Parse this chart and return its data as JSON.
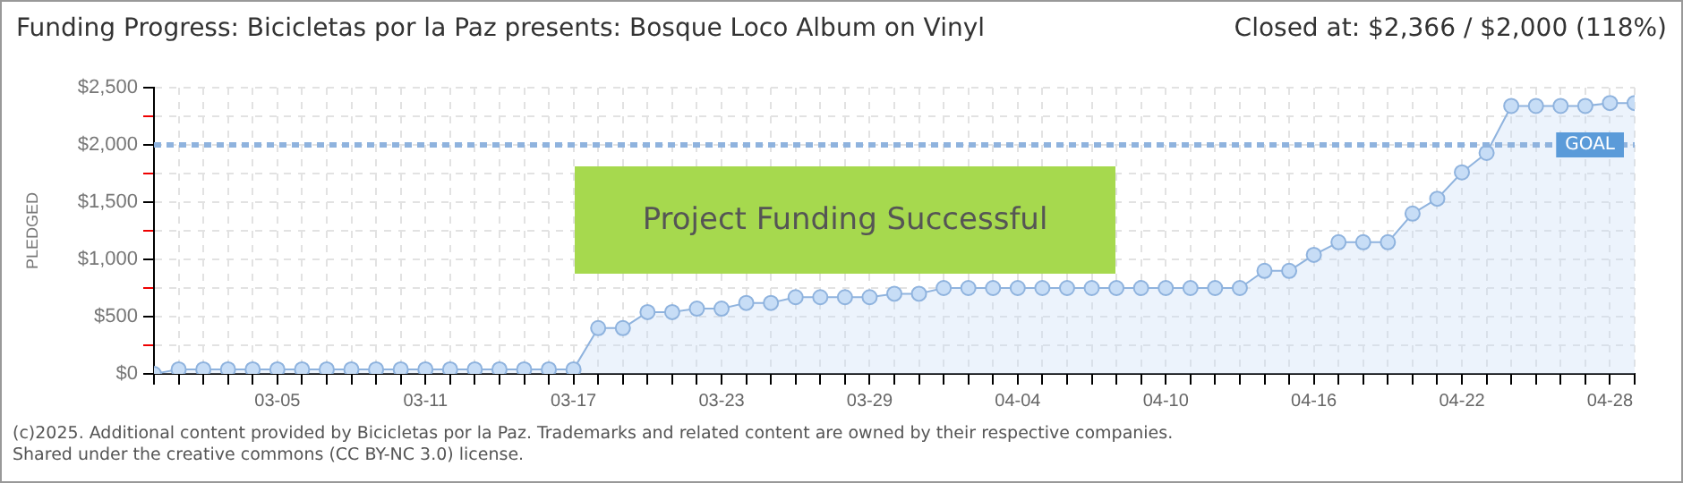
{
  "chart_data": {
    "type": "area",
    "title": "Funding Progress: Bicicletas por la Paz presents: Bosque Loco Album on Vinyl",
    "subtitle": "Closed at:  $2,366 /  $2,000 (118%)",
    "ylabel": "PLEDGED",
    "x": [
      "--02-28",
      "--03-01",
      "--03-02",
      "--03-03",
      "--03-04",
      "--03-05",
      "--03-06",
      "--03-07",
      "--03-08",
      "--03-09",
      "--03-10",
      "--03-11",
      "--03-12",
      "--03-13",
      "--03-14",
      "--03-15",
      "--03-16",
      "--03-17",
      "--03-18",
      "--03-19",
      "--03-20",
      "--03-21",
      "--03-22",
      "--03-23",
      "--03-24",
      "--03-25",
      "--03-26",
      "--03-27",
      "--03-28",
      "--03-29",
      "--03-30",
      "--03-31",
      "--04-01",
      "--04-02",
      "--04-03",
      "--04-04",
      "--04-05",
      "--04-06",
      "--04-07",
      "--04-08",
      "--04-09",
      "--04-10",
      "--04-11",
      "--04-12",
      "--04-13",
      "--04-14",
      "--04-15",
      "--04-16",
      "--04-17",
      "--04-18",
      "--04-19",
      "--04-20",
      "--04-21",
      "--04-22",
      "--04-23",
      "--04-24",
      "--04-25",
      "--04-26",
      "--04-27",
      "--04-28",
      "--04-29"
    ],
    "series": [
      {
        "color": "#8fb3de",
        "values": [
          0,
          40,
          40,
          40,
          40,
          40,
          40,
          40,
          40,
          40,
          40,
          40,
          40,
          40,
          40,
          40,
          40,
          40,
          400,
          400,
          540,
          540,
          570,
          570,
          620,
          620,
          670,
          670,
          670,
          670,
          700,
          700,
          750,
          750,
          750,
          750,
          750,
          750,
          750,
          750,
          750,
          750,
          750,
          750,
          750,
          900,
          900,
          1040,
          1150,
          1150,
          1150,
          1400,
          1530,
          1760,
          1930,
          2340,
          2340,
          2340,
          2340,
          2366,
          2366
        ]
      }
    ],
    "xlim": [
      "--02-28",
      "--04-29"
    ],
    "xticks": [
      {
        "value": "--02-28",
        "label": null
      },
      {
        "value": "--03-01",
        "label": null
      },
      {
        "value": "--03-02",
        "label": null
      },
      {
        "value": "--03-03",
        "label": null
      },
      {
        "value": "--03-04",
        "label": null
      },
      {
        "value": "--03-05",
        "label": "03-05"
      },
      {
        "value": "--03-06",
        "label": null
      },
      {
        "value": "--03-07",
        "label": null
      },
      {
        "value": "--03-08",
        "label": null
      },
      {
        "value": "--03-09",
        "label": null
      },
      {
        "value": "--03-10",
        "label": null
      },
      {
        "value": "--03-11",
        "label": "03-11"
      },
      {
        "value": "--03-12",
        "label": null
      },
      {
        "value": "--03-13",
        "label": null
      },
      {
        "value": "--03-14",
        "label": null
      },
      {
        "value": "--03-15",
        "label": null
      },
      {
        "value": "--03-16",
        "label": null
      },
      {
        "value": "--03-17",
        "label": "03-17"
      },
      {
        "value": "--03-18",
        "label": null
      },
      {
        "value": "--03-19",
        "label": null
      },
      {
        "value": "--03-20",
        "label": null
      },
      {
        "value": "--03-21",
        "label": null
      },
      {
        "value": "--03-22",
        "label": null
      },
      {
        "value": "--03-23",
        "label": "03-23"
      },
      {
        "value": "--03-24",
        "label": null
      },
      {
        "value": "--03-25",
        "label": null
      },
      {
        "value": "--03-26",
        "label": null
      },
      {
        "value": "--03-27",
        "label": null
      },
      {
        "value": "--03-28",
        "label": null
      },
      {
        "value": "--03-29",
        "label": "03-29"
      },
      {
        "value": "--03-30",
        "label": null
      },
      {
        "value": "--03-31",
        "label": null
      },
      {
        "value": "--04-01",
        "label": null
      },
      {
        "value": "--04-02",
        "label": null
      },
      {
        "value": "--04-03",
        "label": null
      },
      {
        "value": "--04-04",
        "label": "04-04"
      },
      {
        "value": "--04-05",
        "label": null
      },
      {
        "value": "--04-06",
        "label": null
      },
      {
        "value": "--04-07",
        "label": null
      },
      {
        "value": "--04-08",
        "label": null
      },
      {
        "value": "--04-09",
        "label": null
      },
      {
        "value": "--04-10",
        "label": "04-10"
      },
      {
        "value": "--04-11",
        "label": null
      },
      {
        "value": "--04-12",
        "label": null
      },
      {
        "value": "--04-13",
        "label": null
      },
      {
        "value": "--04-14",
        "label": null
      },
      {
        "value": "--04-15",
        "label": null
      },
      {
        "value": "--04-16",
        "label": "04-16"
      },
      {
        "value": "--04-17",
        "label": null
      },
      {
        "value": "--04-18",
        "label": null
      },
      {
        "value": "--04-19",
        "label": null
      },
      {
        "value": "--04-20",
        "label": null
      },
      {
        "value": "--04-21",
        "label": null
      },
      {
        "value": "--04-22",
        "label": "04-22"
      },
      {
        "value": "--04-23",
        "label": null
      },
      {
        "value": "--04-24",
        "label": null
      },
      {
        "value": "--04-25",
        "label": null
      },
      {
        "value": "--04-26",
        "label": null
      },
      {
        "value": "--04-27",
        "label": null
      },
      {
        "value": "--04-28",
        "label": "04-28"
      },
      {
        "value": "--04-29",
        "label": null
      }
    ],
    "ylim": [
      0,
      2500
    ],
    "yticks": [
      {
        "value": 0,
        "label": "$0"
      },
      {
        "value": 250,
        "label": null
      },
      {
        "value": 500,
        "label": "$500"
      },
      {
        "value": 750,
        "label": null
      },
      {
        "value": 1000,
        "label": "$1,000"
      },
      {
        "value": 1250,
        "label": null
      },
      {
        "value": 1500,
        "label": "$1,500"
      },
      {
        "value": 1750,
        "label": null
      },
      {
        "value": 2000,
        "label": "$2,000"
      },
      {
        "value": 2250,
        "label": null
      },
      {
        "value": 2500,
        "label": "$2,500"
      }
    ],
    "ref_lines": [
      {
        "axis": "y",
        "value": 2000,
        "label": "GOAL",
        "color": "#8fb3de",
        "line_style": "dashed"
      }
    ],
    "annotations": [
      "Project Funding Successful",
      "(c)2025. Additional content provided by Bicicletas por la Paz. Trademarks and related content are owned by their respective companies.",
      "Shared under the creative commons (CC BY-NC 3.0) license."
    ],
    "grid": true,
    "marker": "circle",
    "legend": false
  }
}
